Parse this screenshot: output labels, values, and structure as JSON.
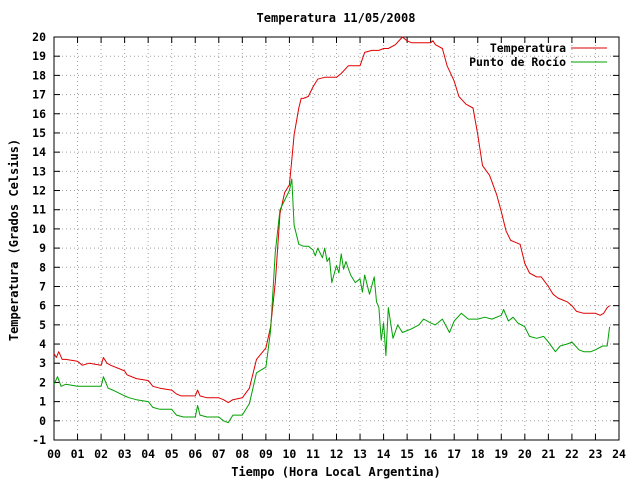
{
  "chart_data": {
    "type": "line",
    "title": "Temperatura 11/05/2008",
    "xlabel": "Tiempo (Hora Local Argentina)",
    "ylabel": "Temperatura (Grados Celsius)",
    "xlim": [
      0,
      24
    ],
    "ylim": [
      -1,
      20
    ],
    "xticks": [
      "00",
      "01",
      "02",
      "03",
      "04",
      "05",
      "06",
      "07",
      "08",
      "09",
      "10",
      "11",
      "12",
      "13",
      "14",
      "15",
      "16",
      "17",
      "18",
      "19",
      "20",
      "21",
      "22",
      "23",
      "24"
    ],
    "yticks": [
      "-1",
      "0",
      "1",
      "2",
      "3",
      "4",
      "5",
      "6",
      "7",
      "8",
      "9",
      "10",
      "11",
      "12",
      "13",
      "14",
      "15",
      "16",
      "17",
      "18",
      "19",
      "20"
    ],
    "grid": true,
    "legend_position": "top-right",
    "series": [
      {
        "name": "Temperatura",
        "color": "#e00000",
        "x": [
          0.0,
          0.1,
          0.2,
          0.35,
          0.5,
          1.0,
          1.2,
          1.5,
          2.0,
          2.1,
          2.25,
          2.4,
          3.0,
          3.1,
          3.5,
          4.0,
          4.2,
          4.5,
          5.0,
          5.2,
          5.4,
          6.0,
          6.1,
          6.2,
          6.5,
          7.0,
          7.2,
          7.4,
          7.6,
          8.0,
          8.3,
          8.6,
          9.0,
          9.2,
          9.4,
          9.6,
          9.8,
          9.9,
          10.0,
          10.1,
          10.2,
          10.4,
          10.5,
          10.6,
          10.8,
          11.0,
          11.2,
          11.5,
          12.0,
          12.2,
          12.5,
          13.0,
          13.2,
          13.5,
          13.8,
          14.0,
          14.2,
          14.5,
          14.8,
          15.0,
          15.2,
          15.5,
          16.0,
          16.1,
          16.2,
          16.5,
          16.7,
          17.0,
          17.2,
          17.5,
          17.8,
          18.0,
          18.2,
          18.5,
          18.8,
          19.0,
          19.2,
          19.4,
          19.6,
          19.8,
          20.0,
          20.2,
          20.5,
          20.7,
          21.0,
          21.2,
          21.4,
          21.6,
          21.8,
          22.0,
          22.2,
          22.5,
          22.8,
          23.0,
          23.2,
          23.35,
          23.5,
          23.6
        ],
        "y": [
          3.5,
          3.3,
          3.6,
          3.2,
          3.2,
          3.1,
          2.9,
          3.0,
          2.9,
          3.3,
          3.0,
          2.9,
          2.6,
          2.4,
          2.2,
          2.1,
          1.8,
          1.7,
          1.6,
          1.4,
          1.3,
          1.3,
          1.6,
          1.3,
          1.2,
          1.2,
          1.1,
          0.95,
          1.1,
          1.2,
          1.7,
          3.2,
          3.8,
          4.9,
          7.2,
          10.8,
          11.9,
          12.1,
          12.3,
          13.6,
          14.9,
          16.3,
          16.8,
          16.8,
          16.9,
          17.4,
          17.8,
          17.9,
          17.9,
          18.1,
          18.5,
          18.5,
          19.2,
          19.3,
          19.3,
          19.4,
          19.4,
          19.6,
          20.0,
          19.8,
          19.7,
          19.7,
          19.7,
          19.8,
          19.6,
          19.4,
          18.5,
          17.7,
          16.9,
          16.5,
          16.3,
          14.9,
          13.3,
          12.8,
          11.8,
          10.9,
          9.9,
          9.4,
          9.3,
          9.2,
          8.2,
          7.7,
          7.5,
          7.5,
          7.0,
          6.6,
          6.4,
          6.3,
          6.2,
          6.0,
          5.7,
          5.6,
          5.6,
          5.6,
          5.5,
          5.6,
          5.9,
          6.0
        ]
      },
      {
        "name": "Punto de Rocío",
        "color": "#00a000",
        "x": [
          0.0,
          0.15,
          0.3,
          0.5,
          1.0,
          1.2,
          1.5,
          2.0,
          2.1,
          2.3,
          2.5,
          3.0,
          3.2,
          3.5,
          4.0,
          4.2,
          4.5,
          5.0,
          5.2,
          5.5,
          6.0,
          6.1,
          6.2,
          6.5,
          7.0,
          7.2,
          7.4,
          7.6,
          8.0,
          8.3,
          8.6,
          9.0,
          9.2,
          9.4,
          9.6,
          9.8,
          10.0,
          10.1,
          10.2,
          10.4,
          10.6,
          10.8,
          11.0,
          11.1,
          11.2,
          11.4,
          11.5,
          11.6,
          11.7,
          11.8,
          12.0,
          12.1,
          12.2,
          12.3,
          12.4,
          12.6,
          12.8,
          13.0,
          13.1,
          13.2,
          13.4,
          13.6,
          13.7,
          13.8,
          13.9,
          14.0,
          14.1,
          14.2,
          14.4,
          14.6,
          14.8,
          15.0,
          15.2,
          15.5,
          15.7,
          16.0,
          16.2,
          16.5,
          16.8,
          17.0,
          17.3,
          17.6,
          18.0,
          18.3,
          18.6,
          19.0,
          19.1,
          19.3,
          19.5,
          19.7,
          20.0,
          20.2,
          20.5,
          20.8,
          21.0,
          21.3,
          21.5,
          21.8,
          22.0,
          22.3,
          22.5,
          22.8,
          23.0,
          23.3,
          23.5,
          23.6
        ],
        "y": [
          1.9,
          2.3,
          1.8,
          1.9,
          1.8,
          1.8,
          1.8,
          1.8,
          2.3,
          1.7,
          1.6,
          1.3,
          1.2,
          1.1,
          1.0,
          0.7,
          0.6,
          0.6,
          0.3,
          0.2,
          0.2,
          0.8,
          0.3,
          0.2,
          0.2,
          0.0,
          -0.1,
          0.3,
          0.3,
          0.9,
          2.5,
          2.8,
          4.7,
          8.8,
          11.0,
          11.5,
          12.0,
          12.6,
          10.2,
          9.2,
          9.1,
          9.1,
          8.9,
          8.6,
          9.0,
          8.5,
          9.0,
          8.3,
          8.5,
          7.2,
          8.1,
          7.7,
          8.7,
          7.9,
          8.3,
          7.6,
          7.2,
          7.4,
          6.7,
          7.6,
          6.6,
          7.5,
          6.2,
          5.9,
          4.2,
          5.1,
          3.4,
          5.9,
          4.3,
          5.0,
          4.6,
          4.7,
          4.8,
          5.0,
          5.3,
          5.1,
          5.0,
          5.3,
          4.6,
          5.2,
          5.6,
          5.3,
          5.3,
          5.4,
          5.3,
          5.5,
          5.8,
          5.2,
          5.4,
          5.1,
          4.9,
          4.4,
          4.3,
          4.4,
          4.1,
          3.6,
          3.9,
          4.0,
          4.1,
          3.7,
          3.6,
          3.6,
          3.7,
          3.9,
          3.9,
          4.9
        ]
      }
    ]
  }
}
